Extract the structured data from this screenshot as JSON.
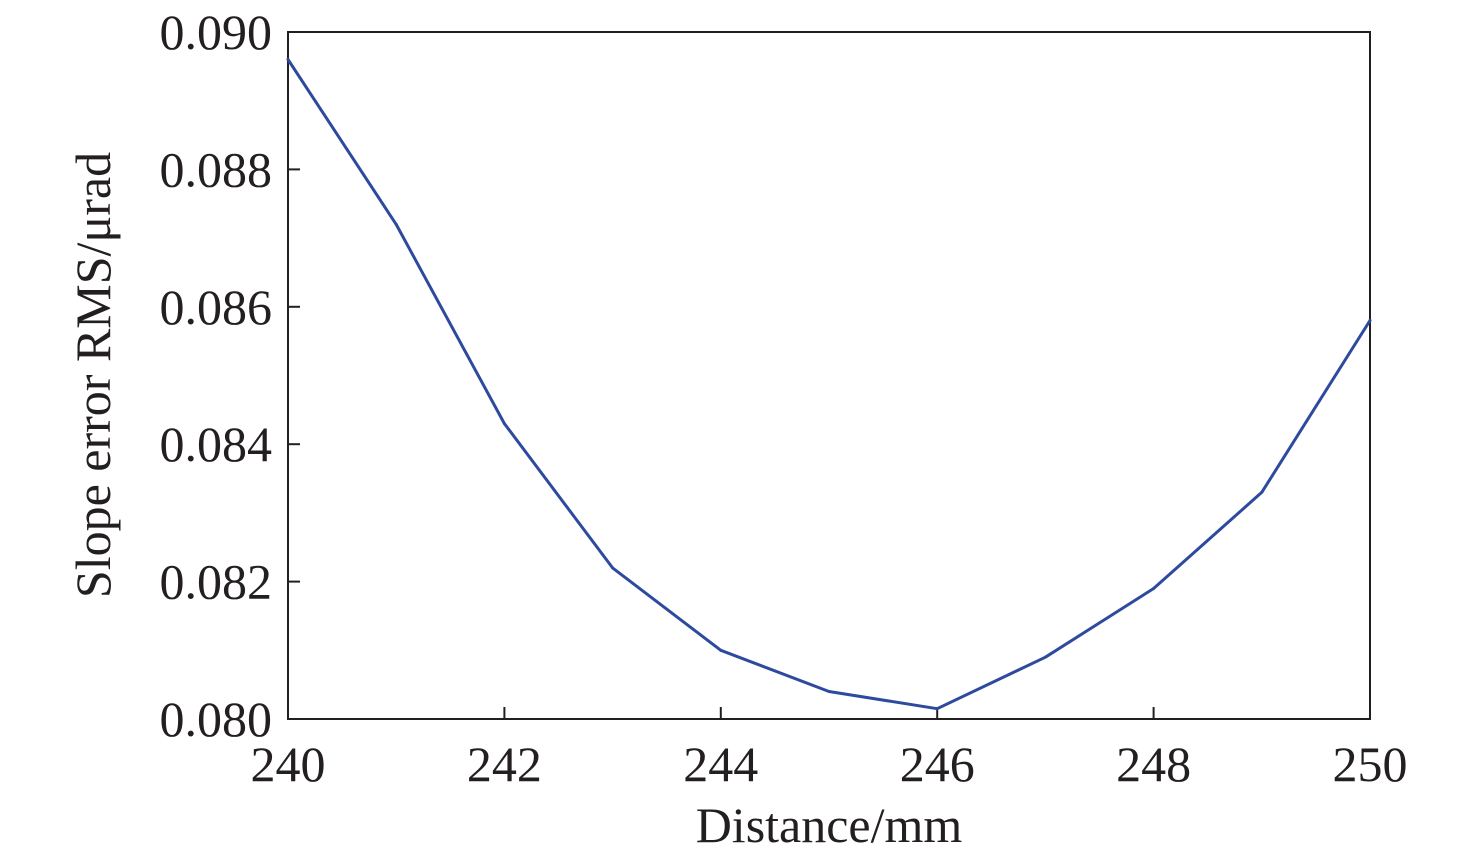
{
  "chart_data": {
    "type": "line",
    "xlabel": "Distance/mm",
    "ylabel": "Slope error RMS/μrad",
    "xlim": [
      240,
      250
    ],
    "ylim": [
      0.08,
      0.09
    ],
    "x_ticks": [
      240,
      242,
      244,
      246,
      248,
      250
    ],
    "x_tick_labels": [
      "240",
      "242",
      "244",
      "246",
      "248",
      "250"
    ],
    "y_ticks": [
      0.08,
      0.082,
      0.084,
      0.086,
      0.088,
      0.09
    ],
    "y_tick_labels": [
      "0.080",
      "0.082",
      "0.084",
      "0.086",
      "0.088",
      "0.090"
    ],
    "grid": false,
    "legend": "none",
    "series": [
      {
        "color": "#2e4a9e",
        "x": [
          240,
          241,
          242,
          243,
          244,
          245,
          246,
          247,
          248,
          249,
          250
        ],
        "y": [
          0.0896,
          0.0872,
          0.0843,
          0.0822,
          0.081,
          0.0804,
          0.08015,
          0.0809,
          0.0819,
          0.0833,
          0.0858
        ]
      }
    ]
  }
}
